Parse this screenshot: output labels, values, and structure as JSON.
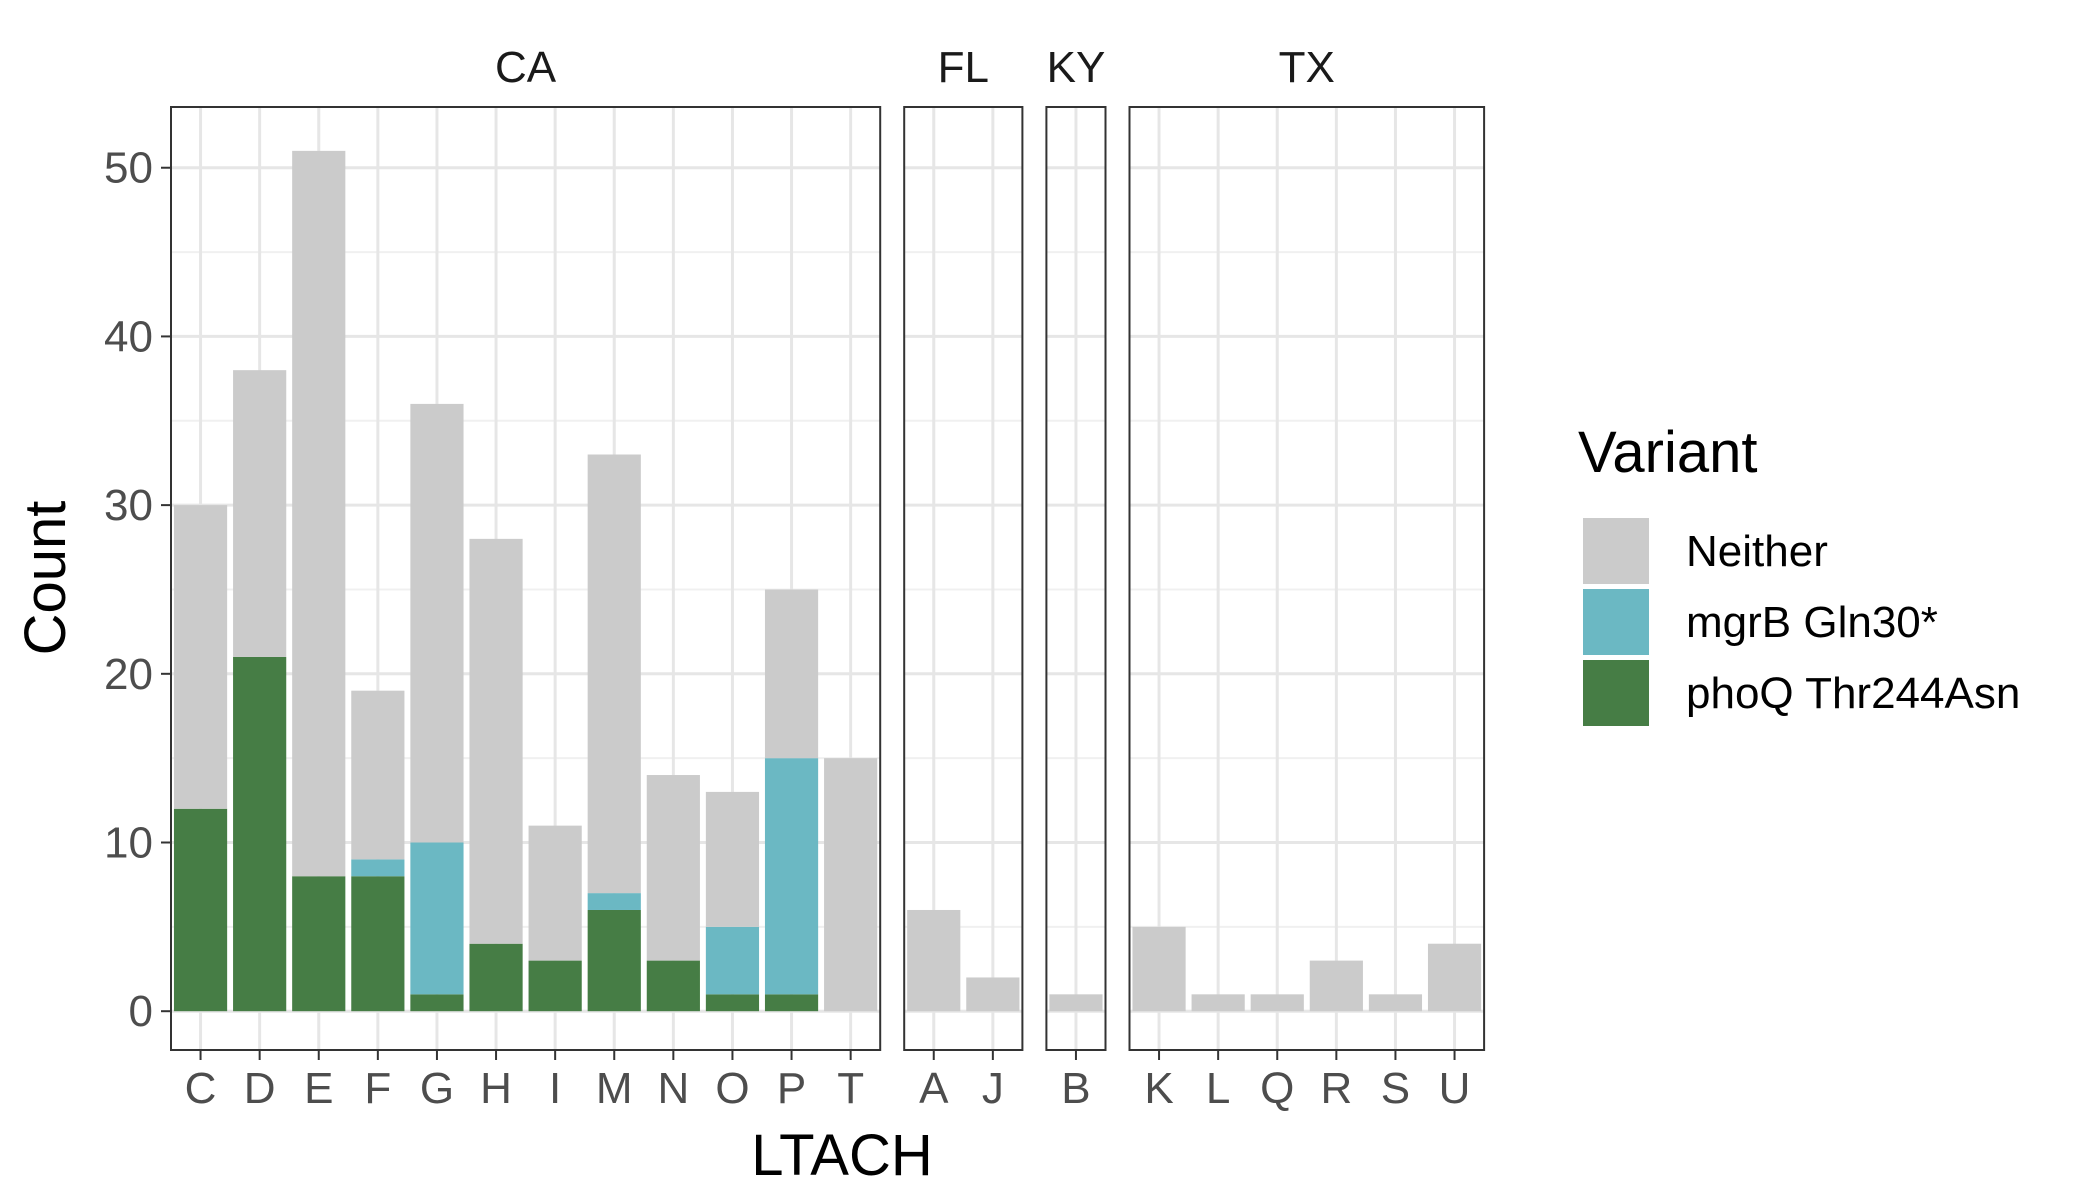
{
  "chart_data": {
    "type": "bar",
    "stacked": true,
    "xlabel": "LTACH",
    "ylabel": "Count",
    "ylim": [
      -2.3,
      53.6
    ],
    "yticks": [
      0,
      10,
      20,
      30,
      40,
      50
    ],
    "grid": true,
    "legend": {
      "title": "Variant",
      "position": "right",
      "entries": [
        "Neither",
        "mgrB Gln30*",
        "phoQ Thr244Asn"
      ]
    },
    "series_colors": {
      "Neither": "#CBCBCB",
      "mgrB Gln30*": "#6BB8C3",
      "phoQ Thr244Asn": "#467D45"
    },
    "facets": [
      {
        "label": "CA",
        "categories": [
          "C",
          "D",
          "E",
          "F",
          "G",
          "H",
          "I",
          "M",
          "N",
          "O",
          "P",
          "T"
        ],
        "series": [
          {
            "name": "phoQ Thr244Asn",
            "values": [
              12,
              21,
              8,
              8,
              1,
              4,
              3,
              6,
              3,
              1,
              1,
              0
            ]
          },
          {
            "name": "mgrB Gln30*",
            "values": [
              0,
              0,
              0,
              1,
              9,
              0,
              0,
              1,
              0,
              4,
              14,
              0
            ]
          },
          {
            "name": "Neither",
            "values": [
              18,
              17,
              43,
              10,
              26,
              24,
              8,
              26,
              11,
              8,
              10,
              15
            ]
          }
        ]
      },
      {
        "label": "FL",
        "categories": [
          "A",
          "J"
        ],
        "series": [
          {
            "name": "phoQ Thr244Asn",
            "values": [
              0,
              0
            ]
          },
          {
            "name": "mgrB Gln30*",
            "values": [
              0,
              0
            ]
          },
          {
            "name": "Neither",
            "values": [
              6,
              2
            ]
          }
        ]
      },
      {
        "label": "KY",
        "categories": [
          "B"
        ],
        "series": [
          {
            "name": "phoQ Thr244Asn",
            "values": [
              0
            ]
          },
          {
            "name": "mgrB Gln30*",
            "values": [
              0
            ]
          },
          {
            "name": "Neither",
            "values": [
              1
            ]
          }
        ]
      },
      {
        "label": "TX",
        "categories": [
          "K",
          "L",
          "Q",
          "R",
          "S",
          "U"
        ],
        "series": [
          {
            "name": "phoQ Thr244Asn",
            "values": [
              0,
              0,
              0,
              0,
              0,
              0
            ]
          },
          {
            "name": "mgrB Gln30*",
            "values": [
              0,
              0,
              0,
              0,
              0,
              0
            ]
          },
          {
            "name": "Neither",
            "values": [
              5,
              1,
              1,
              3,
              1,
              4
            ]
          }
        ]
      }
    ]
  }
}
